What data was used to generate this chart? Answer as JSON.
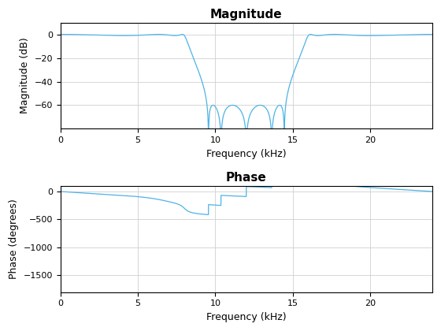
{
  "title_top": "Magnitude",
  "title_bottom": "Phase",
  "xlabel": "Frequency (kHz)",
  "ylabel_top": "Magnitude (dB)",
  "ylabel_bottom": "Phase (degrees)",
  "line_color": "#4db3e6",
  "freq_max": 24.0,
  "mag_ylim": [
    -80,
    10
  ],
  "phase_ylim": [
    -1800,
    100
  ],
  "mag_yticks": [
    0,
    -20,
    -40,
    -60
  ],
  "phase_yticks": [
    0,
    -500,
    -1000,
    -1500
  ],
  "xticks": [
    0,
    5,
    10,
    15,
    20
  ]
}
